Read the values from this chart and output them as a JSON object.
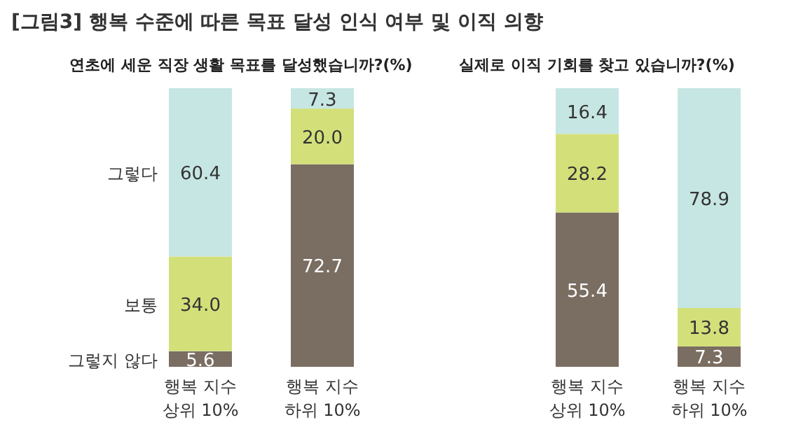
{
  "chart_data": [
    {
      "type": "bar",
      "stacked": true,
      "title": "[그림3] 행복 수준에 따른 목표 달성 인식 여부 및 이직 의향",
      "subtitle": "연초에 세운 직장 생활 목표를 달성했습니까?(%)",
      "categories": [
        "행복 지수\n상위 10%",
        "행복 지수\n하위 10%"
      ],
      "series": [
        {
          "name": "그렇지 않다",
          "color": "#7a6d61",
          "values": [
            5.6,
            72.7
          ],
          "value_labels": [
            "5.6",
            "72.7"
          ]
        },
        {
          "name": "보통",
          "color": "#d3e07a",
          "values": [
            34.0,
            20.0
          ],
          "value_labels": [
            "34.0",
            "20.0"
          ]
        },
        {
          "name": "그렇다",
          "color": "#c6e6e3",
          "values": [
            60.4,
            7.3
          ],
          "value_labels": [
            "60.4",
            "7.3"
          ]
        }
      ]
    },
    {
      "type": "bar",
      "stacked": true,
      "subtitle": "실제로 이직 기회를 찾고 있습니까?(%)",
      "categories": [
        "행복 지수\n상위 10%",
        "행복 지수\n하위 10%"
      ],
      "series": [
        {
          "color": "#7a6d61",
          "values": [
            55.4,
            7.3
          ],
          "value_labels": [
            "55.4",
            "7.3"
          ]
        },
        {
          "color": "#d3e07a",
          "values": [
            28.2,
            13.8
          ],
          "value_labels": [
            "28.2",
            "13.8"
          ]
        },
        {
          "color": "#c6e6e3",
          "values": [
            16.4,
            78.9
          ],
          "value_labels": [
            "16.4",
            "78.9"
          ]
        }
      ]
    }
  ]
}
